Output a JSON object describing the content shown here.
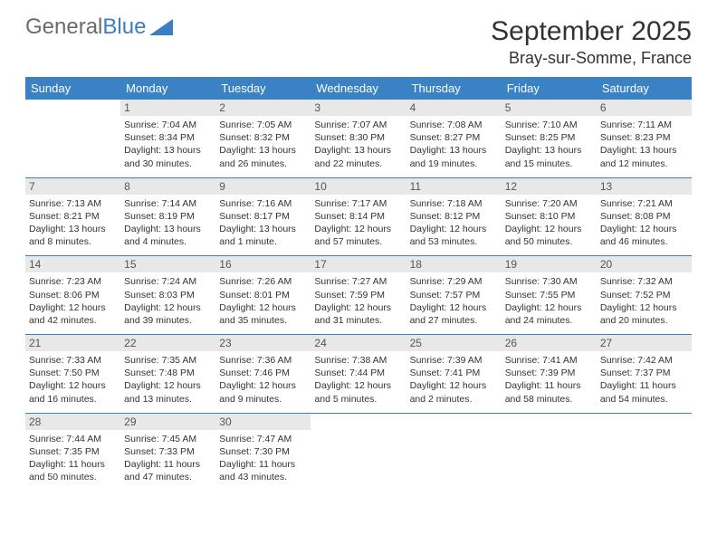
{
  "brand": {
    "part1": "General",
    "part2": "Blue",
    "color_gray": "#6b6b6b",
    "color_blue": "#3a7fc4"
  },
  "title": "September 2025",
  "location": "Bray-sur-Somme, France",
  "header_bg": "#3a82c4",
  "daynum_bg": "#e8e8e8",
  "day_headers": [
    "Sunday",
    "Monday",
    "Tuesday",
    "Wednesday",
    "Thursday",
    "Friday",
    "Saturday"
  ],
  "weeks": [
    [
      null,
      {
        "n": "1",
        "sr": "7:04 AM",
        "ss": "8:34 PM",
        "dl": "13 hours and 30 minutes."
      },
      {
        "n": "2",
        "sr": "7:05 AM",
        "ss": "8:32 PM",
        "dl": "13 hours and 26 minutes."
      },
      {
        "n": "3",
        "sr": "7:07 AM",
        "ss": "8:30 PM",
        "dl": "13 hours and 22 minutes."
      },
      {
        "n": "4",
        "sr": "7:08 AM",
        "ss": "8:27 PM",
        "dl": "13 hours and 19 minutes."
      },
      {
        "n": "5",
        "sr": "7:10 AM",
        "ss": "8:25 PM",
        "dl": "13 hours and 15 minutes."
      },
      {
        "n": "6",
        "sr": "7:11 AM",
        "ss": "8:23 PM",
        "dl": "13 hours and 12 minutes."
      }
    ],
    [
      {
        "n": "7",
        "sr": "7:13 AM",
        "ss": "8:21 PM",
        "dl": "13 hours and 8 minutes."
      },
      {
        "n": "8",
        "sr": "7:14 AM",
        "ss": "8:19 PM",
        "dl": "13 hours and 4 minutes."
      },
      {
        "n": "9",
        "sr": "7:16 AM",
        "ss": "8:17 PM",
        "dl": "13 hours and 1 minute."
      },
      {
        "n": "10",
        "sr": "7:17 AM",
        "ss": "8:14 PM",
        "dl": "12 hours and 57 minutes."
      },
      {
        "n": "11",
        "sr": "7:18 AM",
        "ss": "8:12 PM",
        "dl": "12 hours and 53 minutes."
      },
      {
        "n": "12",
        "sr": "7:20 AM",
        "ss": "8:10 PM",
        "dl": "12 hours and 50 minutes."
      },
      {
        "n": "13",
        "sr": "7:21 AM",
        "ss": "8:08 PM",
        "dl": "12 hours and 46 minutes."
      }
    ],
    [
      {
        "n": "14",
        "sr": "7:23 AM",
        "ss": "8:06 PM",
        "dl": "12 hours and 42 minutes."
      },
      {
        "n": "15",
        "sr": "7:24 AM",
        "ss": "8:03 PM",
        "dl": "12 hours and 39 minutes."
      },
      {
        "n": "16",
        "sr": "7:26 AM",
        "ss": "8:01 PM",
        "dl": "12 hours and 35 minutes."
      },
      {
        "n": "17",
        "sr": "7:27 AM",
        "ss": "7:59 PM",
        "dl": "12 hours and 31 minutes."
      },
      {
        "n": "18",
        "sr": "7:29 AM",
        "ss": "7:57 PM",
        "dl": "12 hours and 27 minutes."
      },
      {
        "n": "19",
        "sr": "7:30 AM",
        "ss": "7:55 PM",
        "dl": "12 hours and 24 minutes."
      },
      {
        "n": "20",
        "sr": "7:32 AM",
        "ss": "7:52 PM",
        "dl": "12 hours and 20 minutes."
      }
    ],
    [
      {
        "n": "21",
        "sr": "7:33 AM",
        "ss": "7:50 PM",
        "dl": "12 hours and 16 minutes."
      },
      {
        "n": "22",
        "sr": "7:35 AM",
        "ss": "7:48 PM",
        "dl": "12 hours and 13 minutes."
      },
      {
        "n": "23",
        "sr": "7:36 AM",
        "ss": "7:46 PM",
        "dl": "12 hours and 9 minutes."
      },
      {
        "n": "24",
        "sr": "7:38 AM",
        "ss": "7:44 PM",
        "dl": "12 hours and 5 minutes."
      },
      {
        "n": "25",
        "sr": "7:39 AM",
        "ss": "7:41 PM",
        "dl": "12 hours and 2 minutes."
      },
      {
        "n": "26",
        "sr": "7:41 AM",
        "ss": "7:39 PM",
        "dl": "11 hours and 58 minutes."
      },
      {
        "n": "27",
        "sr": "7:42 AM",
        "ss": "7:37 PM",
        "dl": "11 hours and 54 minutes."
      }
    ],
    [
      {
        "n": "28",
        "sr": "7:44 AM",
        "ss": "7:35 PM",
        "dl": "11 hours and 50 minutes."
      },
      {
        "n": "29",
        "sr": "7:45 AM",
        "ss": "7:33 PM",
        "dl": "11 hours and 47 minutes."
      },
      {
        "n": "30",
        "sr": "7:47 AM",
        "ss": "7:30 PM",
        "dl": "11 hours and 43 minutes."
      },
      null,
      null,
      null,
      null
    ]
  ],
  "labels": {
    "sunrise": "Sunrise:",
    "sunset": "Sunset:",
    "daylight": "Daylight:"
  }
}
